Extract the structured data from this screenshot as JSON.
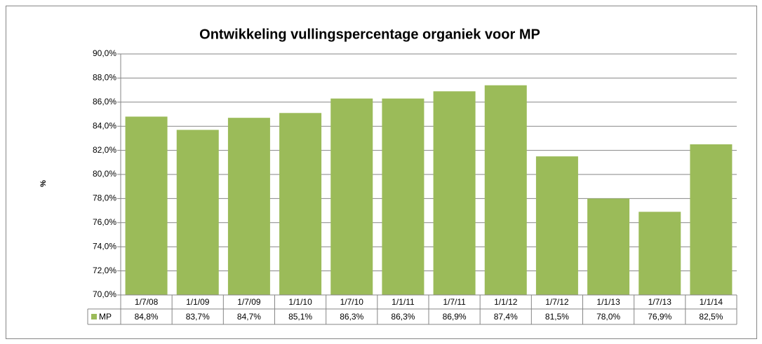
{
  "chart_data": {
    "type": "bar",
    "title": "Ontwikkeling vullingspercentage organiek voor MP",
    "y_label": "%",
    "categories": [
      "1/7/08",
      "1/1/09",
      "1/7/09",
      "1/1/10",
      "1/7/10",
      "1/1/11",
      "1/7/11",
      "1/1/12",
      "1/7/12",
      "1/1/13",
      "1/7/13",
      "1/1/14"
    ],
    "series": [
      {
        "name": "MP",
        "color": "#9bbb59",
        "values": [
          84.8,
          83.7,
          84.7,
          85.1,
          86.3,
          86.3,
          86.9,
          87.4,
          81.5,
          78.0,
          76.9,
          82.5
        ],
        "value_labels": [
          "84,8%",
          "83,7%",
          "84,7%",
          "85,1%",
          "86,3%",
          "86,3%",
          "86,9%",
          "87,4%",
          "81,5%",
          "78,0%",
          "76,9%",
          "82,5%"
        ]
      }
    ],
    "ylim": [
      70,
      90
    ],
    "yticks": [
      {
        "value": 70,
        "label": "70,0%"
      },
      {
        "value": 72,
        "label": "72,0%"
      },
      {
        "value": 74,
        "label": "74,0%"
      },
      {
        "value": 76,
        "label": "76,0%"
      },
      {
        "value": 78,
        "label": "78,0%"
      },
      {
        "value": 80,
        "label": "80,0%"
      },
      {
        "value": 82,
        "label": "82,0%"
      },
      {
        "value": 84,
        "label": "84,0%"
      },
      {
        "value": 86,
        "label": "86,0%"
      },
      {
        "value": 88,
        "label": "88,0%"
      },
      {
        "value": 90,
        "label": "90,0%"
      }
    ],
    "grid": true,
    "data_table": true
  }
}
